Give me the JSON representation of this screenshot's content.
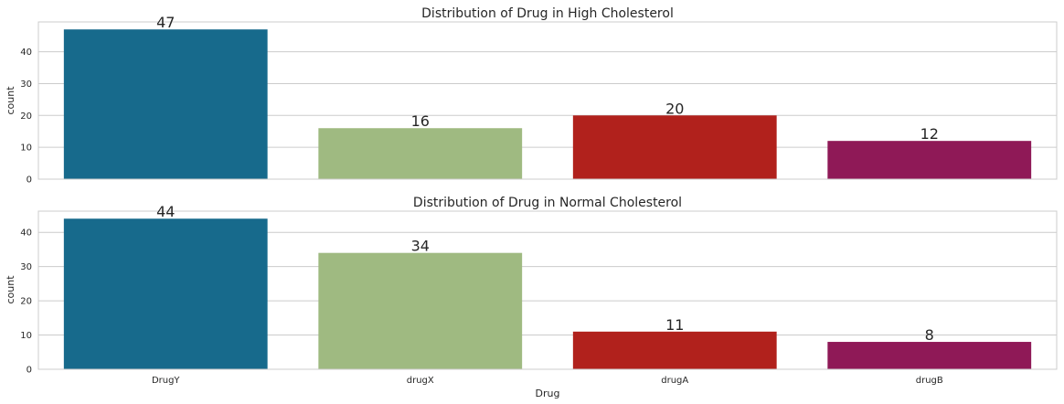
{
  "chart_data": [
    {
      "type": "bar",
      "title": "Distribution of Drug in High Cholesterol",
      "xlabel": "",
      "ylabel": "count",
      "categories": [
        "DrugY",
        "drugX",
        "drugA",
        "drugB"
      ],
      "values": [
        47,
        16,
        20,
        12
      ],
      "colors": [
        "#176a8c",
        "#9fba81",
        "#b1211c",
        "#8f1957"
      ],
      "ylim": [
        0,
        49.35
      ],
      "yticks": [
        0,
        10,
        20,
        30,
        40
      ],
      "show_xticklabels": false,
      "grid": "y"
    },
    {
      "type": "bar",
      "title": "Distribution of Drug in Normal Cholesterol",
      "xlabel": "Drug",
      "ylabel": "count",
      "categories": [
        "DrugY",
        "drugX",
        "drugA",
        "drugB"
      ],
      "values": [
        44,
        34,
        11,
        8
      ],
      "colors": [
        "#176a8c",
        "#9fba81",
        "#b1211c",
        "#8f1957"
      ],
      "ylim": [
        0,
        46.2
      ],
      "yticks": [
        0,
        10,
        20,
        30,
        40
      ],
      "show_xticklabels": true,
      "grid": "y"
    }
  ]
}
